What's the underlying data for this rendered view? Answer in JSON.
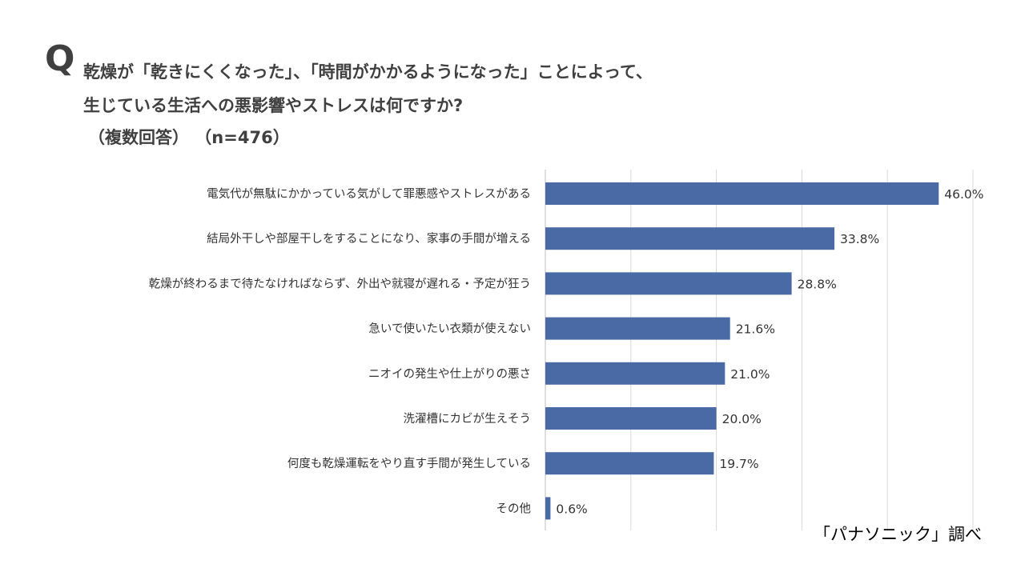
{
  "question_mark": "Q",
  "title": {
    "line1": "乾燥が「乾きにくくなった」、「時間がかかるようになった」ことによって、",
    "line2": "生じている生活への悪影響やストレスは何ですか?",
    "line3": "（複数回答）  （n=476）"
  },
  "source": "「パナソニック」調べ",
  "colors": {
    "bar": "#4a6aa5",
    "grid": "#d9d9d9",
    "axis": "#bfbfbf"
  },
  "chart_data": {
    "type": "bar",
    "orientation": "horizontal",
    "categories": [
      "電気代が無駄にかかっている気がして罪悪感やストレスがある",
      "結局外干しや部屋干しをすることになり、家事の手間が増える",
      "乾燥が終わるまで待たなければならず、外出や就寝が遅れる・予定が狂う",
      "急いで使いたい衣類が使えない",
      "ニオイの発生や仕上がりの悪さ",
      "洗濯槽にカビが生えそう",
      "何度も乾燥運転をやり直す手間が発生している",
      "その他"
    ],
    "values": [
      46.0,
      33.8,
      28.8,
      21.6,
      21.0,
      20.0,
      19.7,
      0.6
    ],
    "value_labels": [
      "46.0%",
      "33.8%",
      "28.8%",
      "21.6%",
      "21.0%",
      "20.0%",
      "19.7%",
      "0.6%"
    ],
    "xlim": [
      0,
      50
    ],
    "grid": true,
    "title": "",
    "xlabel": "",
    "ylabel": ""
  }
}
